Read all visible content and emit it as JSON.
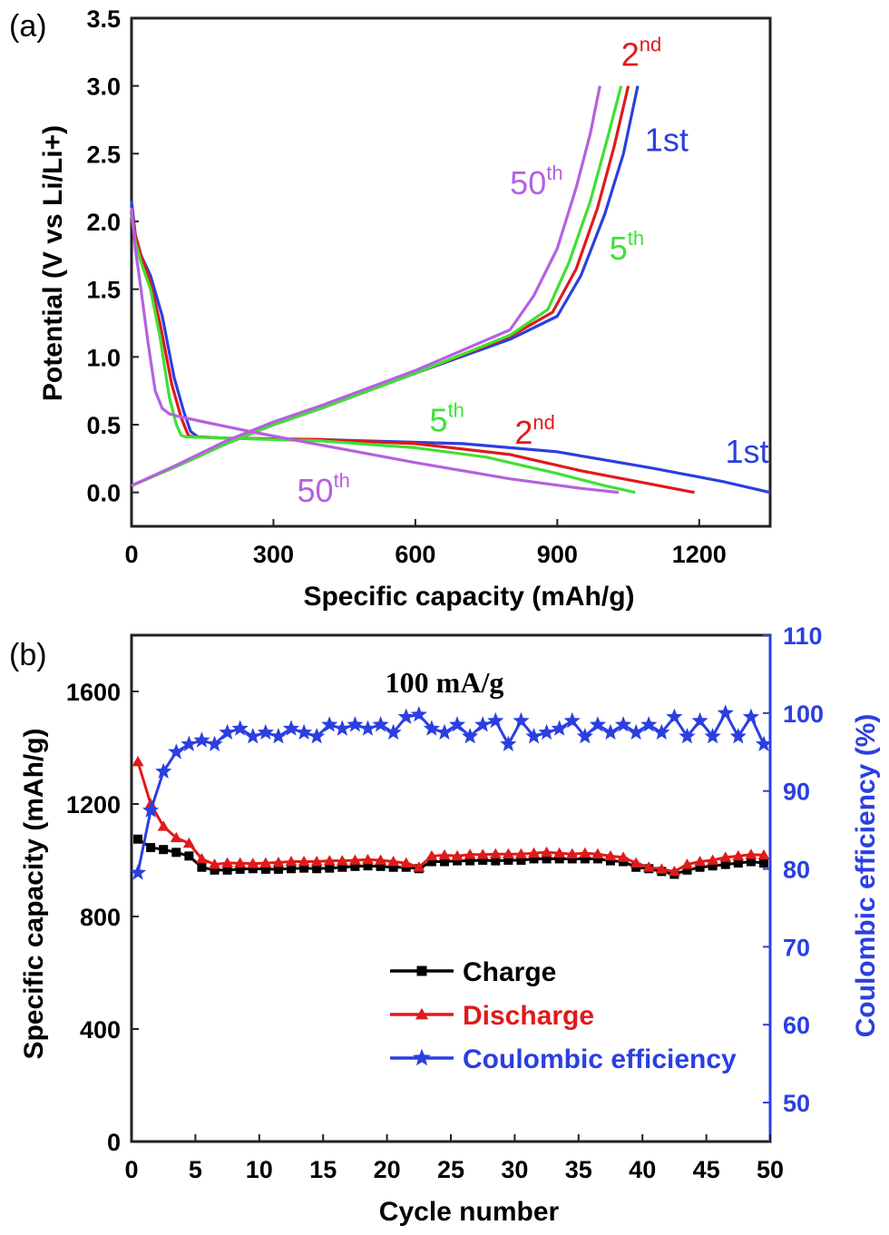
{
  "chart_data": [
    {
      "type": "line",
      "panel_label": "(a)",
      "xlabel": "Specific capacity (mAh/g)",
      "ylabel": "Potential (V vs Li/Li+)",
      "xlim": [
        0,
        1350
      ],
      "ylim": [
        -0.25,
        3.5
      ],
      "xticks": [
        0,
        300,
        600,
        900,
        1200
      ],
      "yticks": [
        0.0,
        0.5,
        1.0,
        1.5,
        2.0,
        2.5,
        3.0,
        3.5
      ],
      "grid": false,
      "series": [
        {
          "name": "1st",
          "color": "#2b3fe0",
          "kind": "discharge",
          "x": [
            0,
            8,
            20,
            40,
            65,
            90,
            110,
            125,
            140,
            200,
            400,
            700,
            900,
            1100,
            1250,
            1350
          ],
          "y": [
            2.15,
            1.9,
            1.75,
            1.6,
            1.3,
            0.85,
            0.6,
            0.45,
            0.41,
            0.4,
            0.39,
            0.36,
            0.3,
            0.18,
            0.08,
            0.0
          ]
        },
        {
          "name": "1st",
          "color": "#2b3fe0",
          "kind": "charge",
          "x": [
            0,
            100,
            200,
            300,
            400,
            600,
            800,
            900,
            950,
            1000,
            1040,
            1070
          ],
          "y": [
            0.05,
            0.2,
            0.36,
            0.5,
            0.62,
            0.88,
            1.13,
            1.3,
            1.6,
            2.05,
            2.5,
            3.0
          ]
        },
        {
          "name": "2nd",
          "color": "#e01a1a",
          "kind": "discharge",
          "x": [
            0,
            8,
            20,
            40,
            60,
            85,
            105,
            120,
            130,
            200,
            400,
            600,
            800,
            950,
            1100,
            1190
          ],
          "y": [
            2.1,
            1.9,
            1.75,
            1.55,
            1.25,
            0.8,
            0.55,
            0.42,
            0.41,
            0.4,
            0.39,
            0.36,
            0.28,
            0.16,
            0.06,
            0.0
          ]
        },
        {
          "name": "2nd",
          "color": "#e01a1a",
          "kind": "charge",
          "x": [
            0,
            100,
            200,
            300,
            400,
            600,
            800,
            890,
            940,
            985,
            1020,
            1050
          ],
          "y": [
            0.05,
            0.2,
            0.36,
            0.5,
            0.62,
            0.88,
            1.15,
            1.33,
            1.65,
            2.1,
            2.55,
            3.0
          ]
        },
        {
          "name": "5th",
          "color": "#3ee035",
          "kind": "discharge",
          "x": [
            0,
            8,
            20,
            40,
            60,
            80,
            95,
            105,
            115,
            200,
            400,
            600,
            750,
            900,
            1000,
            1065
          ],
          "y": [
            2.05,
            1.85,
            1.7,
            1.5,
            1.15,
            0.7,
            0.5,
            0.42,
            0.41,
            0.4,
            0.38,
            0.33,
            0.26,
            0.14,
            0.05,
            0.0
          ]
        },
        {
          "name": "5th",
          "color": "#3ee035",
          "kind": "charge",
          "x": [
            0,
            100,
            200,
            300,
            400,
            600,
            800,
            880,
            925,
            970,
            1005,
            1035
          ],
          "y": [
            0.05,
            0.2,
            0.36,
            0.5,
            0.62,
            0.88,
            1.16,
            1.35,
            1.7,
            2.15,
            2.6,
            3.0
          ]
        },
        {
          "name": "50th",
          "color": "#b560e0",
          "kind": "discharge",
          "x": [
            0,
            8,
            20,
            35,
            50,
            65,
            80,
            100,
            140,
            250,
            400,
            600,
            800,
            950,
            1030
          ],
          "y": [
            2.1,
            1.8,
            1.5,
            1.1,
            0.75,
            0.62,
            0.58,
            0.56,
            0.53,
            0.45,
            0.35,
            0.22,
            0.1,
            0.03,
            0.0
          ]
        },
        {
          "name": "50th",
          "color": "#b560e0",
          "kind": "charge",
          "x": [
            0,
            100,
            200,
            300,
            400,
            600,
            800,
            850,
            900,
            940,
            970,
            990
          ],
          "y": [
            0.05,
            0.21,
            0.38,
            0.52,
            0.64,
            0.9,
            1.2,
            1.45,
            1.8,
            2.25,
            2.65,
            3.0
          ]
        }
      ],
      "annotations": [
        {
          "text": "2",
          "sup": "nd",
          "color": "#e01a1a",
          "at": [
            1035,
            3.15
          ]
        },
        {
          "text": "1st",
          "sup": "",
          "color": "#2b3fe0",
          "at": [
            1085,
            2.52
          ]
        },
        {
          "text": "50",
          "sup": "th",
          "color": "#b560e0",
          "at": [
            800,
            2.2
          ]
        },
        {
          "text": "5",
          "sup": "th",
          "color": "#3ee035",
          "at": [
            1010,
            1.72
          ]
        },
        {
          "text": "5",
          "sup": "th",
          "color": "#3ee035",
          "at": [
            630,
            0.45
          ]
        },
        {
          "text": "2",
          "sup": "nd",
          "color": "#e01a1a",
          "at": [
            810,
            0.36
          ]
        },
        {
          "text": "1st",
          "sup": "",
          "color": "#2b3fe0",
          "at": [
            1255,
            0.22
          ]
        },
        {
          "text": "50",
          "sup": "th",
          "color": "#b560e0",
          "at": [
            350,
            -0.07
          ]
        }
      ]
    },
    {
      "type": "line",
      "panel_label": "(b)",
      "title": "100 mA/g",
      "xlabel": "Cycle number",
      "ylabel": "Specific capacity (mAh/g)",
      "ylabel_right": "Coulombic efficiency (%)",
      "xlim": [
        0,
        50
      ],
      "ylim": [
        0,
        1800
      ],
      "ylim_right": [
        45,
        110
      ],
      "xticks": [
        0,
        5,
        10,
        15,
        20,
        25,
        30,
        35,
        40,
        45,
        50
      ],
      "yticks": [
        0,
        400,
        800,
        1200,
        1600
      ],
      "yticks_right": [
        50,
        60,
        70,
        80,
        90,
        100,
        110
      ],
      "grid": false,
      "legend_position": "bottom-center",
      "series": [
        {
          "name": "Charge",
          "color": "#000000",
          "marker": "square",
          "axis": "left",
          "x": [
            0.5,
            1.5,
            2.5,
            3.5,
            4.5,
            5.5,
            6.5,
            7.5,
            8.5,
            9.5,
            10.5,
            11.5,
            12.5,
            13.5,
            14.5,
            15.5,
            16.5,
            17.5,
            18.5,
            19.5,
            20.5,
            21.5,
            22.5,
            23.5,
            24.5,
            25.5,
            26.5,
            27.5,
            28.5,
            29.5,
            30.5,
            31.5,
            32.5,
            33.5,
            34.5,
            35.5,
            36.5,
            37.5,
            38.5,
            39.5,
            40.5,
            41.5,
            42.5,
            43.5,
            44.5,
            45.5,
            46.5,
            47.5,
            48.5,
            49.5
          ],
          "y": [
            1075,
            1045,
            1038,
            1028,
            1015,
            975,
            965,
            965,
            968,
            970,
            968,
            968,
            970,
            972,
            970,
            972,
            975,
            978,
            980,
            978,
            975,
            975,
            970,
            995,
            995,
            998,
            998,
            1000,
            998,
            1000,
            1000,
            1005,
            1005,
            1005,
            1005,
            1005,
            1005,
            998,
            995,
            975,
            970,
            960,
            950,
            965,
            975,
            980,
            985,
            990,
            995,
            990
          ]
        },
        {
          "name": "Discharge",
          "color": "#e01a1a",
          "marker": "triangle",
          "axis": "left",
          "x": [
            0.5,
            1.5,
            2.5,
            3.5,
            4.5,
            5.5,
            6.5,
            7.5,
            8.5,
            9.5,
            10.5,
            11.5,
            12.5,
            13.5,
            14.5,
            15.5,
            16.5,
            17.5,
            18.5,
            19.5,
            20.5,
            21.5,
            22.5,
            23.5,
            24.5,
            25.5,
            26.5,
            27.5,
            28.5,
            29.5,
            30.5,
            31.5,
            32.5,
            33.5,
            34.5,
            35.5,
            36.5,
            37.5,
            38.5,
            39.5,
            40.5,
            41.5,
            42.5,
            43.5,
            44.5,
            45.5,
            46.5,
            47.5,
            48.5,
            49.5
          ],
          "y": [
            1350,
            1200,
            1120,
            1080,
            1060,
            1005,
            985,
            990,
            990,
            988,
            990,
            992,
            995,
            995,
            995,
            998,
            998,
            1000,
            1002,
            1000,
            995,
            990,
            975,
            1015,
            1018,
            1015,
            1020,
            1020,
            1022,
            1022,
            1022,
            1025,
            1028,
            1025,
            1022,
            1025,
            1022,
            1015,
            1010,
            990,
            975,
            968,
            960,
            985,
            995,
            1000,
            1010,
            1015,
            1020,
            1018
          ]
        },
        {
          "name": "Coulombic efficiency",
          "color": "#2b3fe0",
          "marker": "star",
          "axis": "right",
          "x": [
            0.5,
            1.5,
            2.5,
            3.5,
            4.5,
            5.5,
            6.5,
            7.5,
            8.5,
            9.5,
            10.5,
            11.5,
            12.5,
            13.5,
            14.5,
            15.5,
            16.5,
            17.5,
            18.5,
            19.5,
            20.5,
            21.5,
            22.5,
            23.5,
            24.5,
            25.5,
            26.5,
            27.5,
            28.5,
            29.5,
            30.5,
            31.5,
            32.5,
            33.5,
            34.5,
            35.5,
            36.5,
            37.5,
            38.5,
            39.5,
            40.5,
            41.5,
            42.5,
            43.5,
            44.5,
            45.5,
            46.5,
            47.5,
            48.5,
            49.5
          ],
          "y": [
            79.5,
            87.5,
            92.5,
            95,
            96,
            96.5,
            96,
            97.5,
            98,
            97,
            97.5,
            97,
            98,
            97.5,
            97,
            98.5,
            98,
            98.5,
            98,
            98.5,
            97.5,
            99.5,
            99.8,
            98,
            97.5,
            98.5,
            97,
            98.5,
            99,
            96,
            99,
            97,
            97.5,
            98,
            99,
            97,
            98.5,
            97.5,
            98.5,
            97.5,
            98.5,
            97.5,
            99.5,
            97,
            99,
            97,
            100,
            97,
            99.5,
            96
          ]
        }
      ]
    }
  ]
}
